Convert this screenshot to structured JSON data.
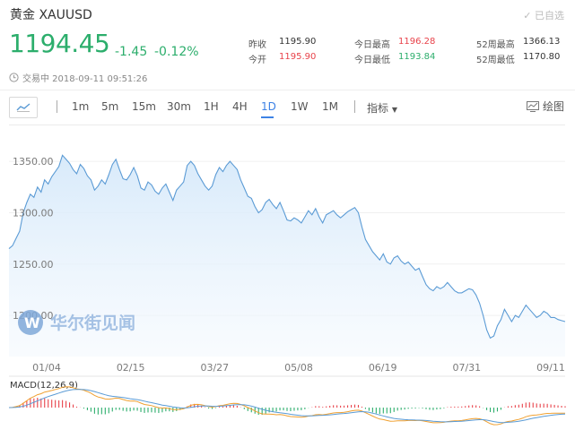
{
  "header": {
    "title": "黄金 XAUUSD",
    "watch_label": "已自选",
    "price": "1194.45",
    "change": "-1.45",
    "change_pct": "-0.12%",
    "time": "交易中 2018-09-11 09:51:26"
  },
  "stats": {
    "prev_close_label": "昨收",
    "prev_close": "1195.90",
    "open_label": "今开",
    "open": "1195.90",
    "day_high_label": "今日最高",
    "day_high": "1196.28",
    "day_low_label": "今日最低",
    "day_low": "1193.84",
    "wk52_high_label": "52周最高",
    "wk52_high": "1366.13",
    "wk52_low_label": "52周最低",
    "wk52_low": "1170.80"
  },
  "toolbar": {
    "timeframes": [
      "1m",
      "5m",
      "15m",
      "30m",
      "1H",
      "4H",
      "1D",
      "1W",
      "1M"
    ],
    "active_timeframe": "1D",
    "indicator_label": "指标",
    "draw_label": "绘图"
  },
  "watermark": "华尔街见闻",
  "colors": {
    "up_green": "#2cae6c",
    "down_red": "#e8424a",
    "accent_blue": "#3d82e5",
    "line_blue": "#5b9bd5",
    "area_fill": "#e3f0fb"
  },
  "chart_data": {
    "type": "area",
    "y_ticks": [
      "1350.00",
      "1300.00",
      "1250.00",
      "1200.00"
    ],
    "y_tick_values": [
      1350,
      1300,
      1250,
      1200
    ],
    "x_ticks": [
      "01/04",
      "02/15",
      "03/27",
      "05/08",
      "06/19",
      "07/31",
      "09/11"
    ],
    "ylim": [
      1160,
      1385
    ],
    "values": [
      1265,
      1268,
      1275,
      1282,
      1300,
      1310,
      1318,
      1315,
      1325,
      1320,
      1332,
      1328,
      1335,
      1340,
      1345,
      1356,
      1352,
      1348,
      1342,
      1338,
      1347,
      1343,
      1336,
      1332,
      1322,
      1326,
      1332,
      1328,
      1337,
      1347,
      1352,
      1342,
      1333,
      1332,
      1337,
      1344,
      1336,
      1324,
      1322,
      1330,
      1327,
      1321,
      1318,
      1324,
      1328,
      1320,
      1312,
      1322,
      1326,
      1330,
      1346,
      1350,
      1346,
      1338,
      1332,
      1326,
      1322,
      1326,
      1337,
      1344,
      1340,
      1346,
      1350,
      1346,
      1342,
      1332,
      1324,
      1316,
      1314,
      1306,
      1300,
      1303,
      1310,
      1313,
      1308,
      1304,
      1310,
      1302,
      1293,
      1292,
      1295,
      1293,
      1290,
      1296,
      1302,
      1298,
      1304,
      1296,
      1290,
      1298,
      1300,
      1302,
      1298,
      1295,
      1298,
      1301,
      1303,
      1305,
      1300,
      1286,
      1274,
      1268,
      1262,
      1258,
      1254,
      1260,
      1252,
      1250,
      1256,
      1258,
      1253,
      1250,
      1252,
      1248,
      1244,
      1246,
      1238,
      1230,
      1226,
      1224,
      1228,
      1226,
      1228,
      1232,
      1228,
      1224,
      1222,
      1222,
      1224,
      1226,
      1225,
      1220,
      1212,
      1200,
      1186,
      1178,
      1180,
      1190,
      1196,
      1206,
      1200,
      1194,
      1200,
      1198,
      1204,
      1210,
      1206,
      1202,
      1198,
      1200,
      1204,
      1202,
      1198,
      1198,
      1196,
      1195,
      1194
    ],
    "macd_label": "MACD(12,26,9)"
  }
}
